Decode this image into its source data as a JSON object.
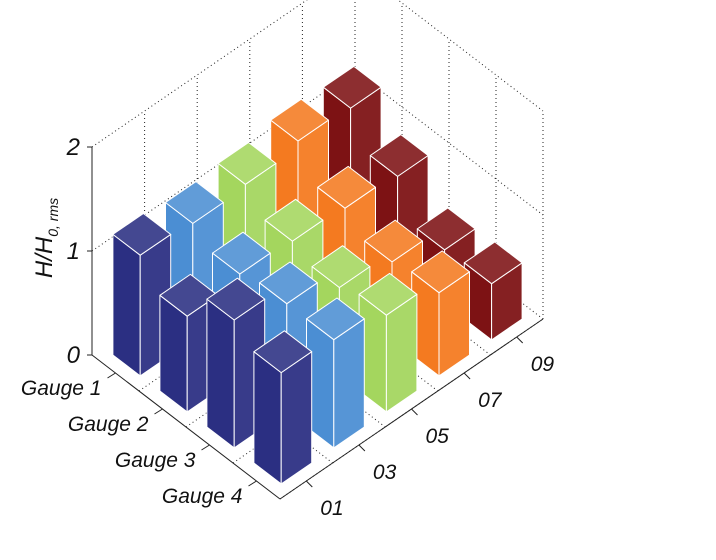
{
  "chart_data": {
    "type": "bar",
    "bar3d": true,
    "title": "",
    "ylabel": "H/H",
    "ylabel_subscript": "0, rms",
    "zlim": [
      0,
      2
    ],
    "zticks": [
      "0",
      "1",
      "2"
    ],
    "rows": [
      "Gauge 1",
      "Gauge 2",
      "Gauge 3",
      "Gauge 4"
    ],
    "columns": [
      "01",
      "03",
      "05",
      "07",
      "09"
    ],
    "column_colors": [
      "#2b2f82",
      "#4b8ed3",
      "#a4d65e",
      "#f47a20",
      "#7d1214"
    ],
    "grid": true,
    "series": [
      {
        "row": "Gauge 1",
        "values": [
          1.16,
          1.12,
          1.15,
          1.22,
          1.19
        ]
      },
      {
        "row": "Gauge 2",
        "values": [
          0.92,
          0.98,
          0.95,
          0.92,
          0.88
        ]
      },
      {
        "row": "Gauge 3",
        "values": [
          1.23,
          1.04,
          0.85,
          0.75,
          0.52
        ]
      },
      {
        "row": "Gauge 4",
        "values": [
          1.07,
          1.04,
          0.93,
          0.8,
          0.54
        ]
      }
    ]
  }
}
